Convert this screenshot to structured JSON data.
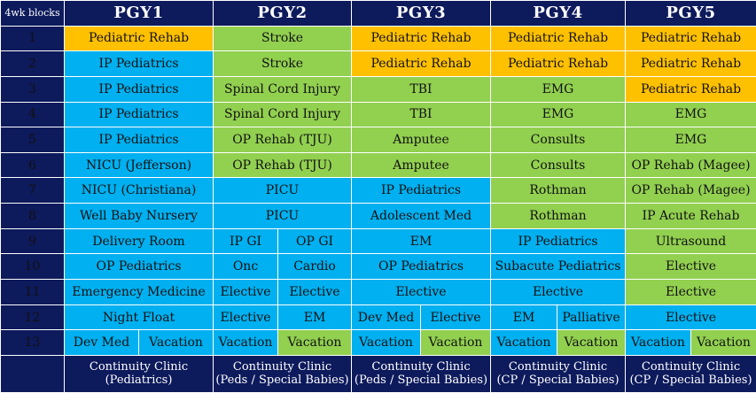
{
  "corner_label": "4wk blocks",
  "headers": [
    "PGY1",
    "PGY2",
    "PGY3",
    "PGY4",
    "PGY5"
  ],
  "colors": {
    "blue": "#00b0f0",
    "green": "#92d050",
    "orange": "#ffc000",
    "navy": "#0d1a5c"
  },
  "blocks": [
    "1",
    "2",
    "3",
    "4",
    "5",
    "6",
    "7",
    "8",
    "9",
    "10",
    "11",
    "12",
    "13"
  ],
  "cells": {
    "r1": [
      "Pediatric Rehab",
      "Stroke",
      "Pediatric Rehab",
      "Pediatric Rehab",
      "Pediatric Rehab"
    ],
    "r2": [
      "IP Pediatrics",
      "Stroke",
      "Pediatric Rehab",
      "Pediatric Rehab",
      "Pediatric Rehab"
    ],
    "r3": [
      "IP Pediatrics",
      "Spinal Cord Injury",
      "TBI",
      "EMG",
      "Pediatric Rehab"
    ],
    "r4": [
      "IP Pediatrics",
      "Spinal Cord Injury",
      "TBI",
      "EMG",
      "EMG"
    ],
    "r5": [
      "IP Pediatrics",
      "OP Rehab (TJU)",
      "Amputee",
      "Consults",
      "EMG"
    ],
    "r6": [
      "NICU (Jefferson)",
      "OP Rehab (TJU)",
      "Amputee",
      "Consults",
      "OP Rehab (Magee)"
    ],
    "r7": [
      "NICU (Christiana)",
      "PICU",
      "IP Pediatrics",
      "Rothman",
      "OP Rehab (Magee)"
    ],
    "r8": [
      "Well Baby Nursery",
      "PICU",
      "Adolescent Med",
      "Rothman",
      "IP Acute Rehab"
    ],
    "r9": [
      "Delivery Room",
      "IP GI",
      "OP GI",
      "EM",
      "IP Pediatrics",
      "Ultrasound"
    ],
    "r10": [
      "OP Pediatrics",
      "Onc",
      "Cardio",
      "OP Pediatrics",
      "Subacute Pediatrics",
      "Elective"
    ],
    "r11": [
      "Emergency Medicine",
      "Elective",
      "Elective",
      "Elective",
      "Elective",
      "Elective"
    ],
    "r12": [
      "Night Float",
      "Elective",
      "EM",
      "Dev Med",
      "Elective",
      "EM",
      "Palliative",
      "Elective"
    ],
    "r13": [
      "Dev Med",
      "Vacation",
      "Vacation",
      "Vacation",
      "Vacation",
      "Vacation",
      "Vacation",
      "Vacation",
      "Vacation",
      "Vacation"
    ]
  },
  "footer": [
    [
      "Continuity Clinic",
      "(Pediatrics)"
    ],
    [
      "Continuity Clinic",
      "(Peds / Special Babies)"
    ],
    [
      "Continuity Clinic",
      "(Peds / Special Babies)"
    ],
    [
      "Continuity Clinic",
      "(CP / Special Babies)"
    ],
    [
      "Continuity Clinic",
      "(CP / Special Babies)"
    ]
  ]
}
